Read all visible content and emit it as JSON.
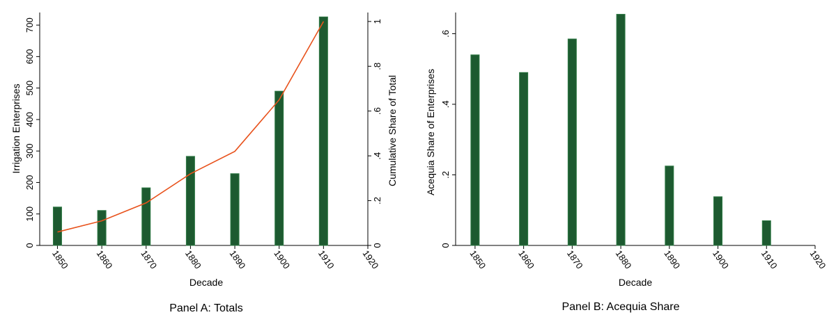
{
  "colors": {
    "bar": "#1d5a30",
    "bar_edge": "#2f7a45",
    "line": "#e8521c",
    "axis": "#000000"
  },
  "chart_data": [
    {
      "type": "bar",
      "title": "Panel A: Totals",
      "xlabel": "Decade",
      "ylabel": "Irrigation Enterprises",
      "y2label": "Cumulative Share of Total",
      "x": [
        1850,
        1860,
        1870,
        1880,
        1890,
        1900,
        1910
      ],
      "x_ticks": [
        "1850",
        "1860",
        "1870",
        "1880",
        "1890",
        "1900",
        "1910",
        "1920"
      ],
      "xlim": [
        1846,
        1920
      ],
      "y_ticks": [
        "0",
        "100",
        "200",
        "300",
        "400",
        "500",
        "600",
        "700"
      ],
      "ylim": [
        0,
        740
      ],
      "y2_ticks": [
        "0",
        ".2",
        ".4",
        ".6",
        ".8",
        "1"
      ],
      "y2lim": [
        0,
        1.04
      ],
      "series": [
        {
          "name": "",
          "kind": "bar",
          "axis": "left",
          "values": [
            122,
            111,
            183,
            283,
            228,
            490,
            726
          ]
        },
        {
          "name": "",
          "kind": "line",
          "axis": "right",
          "values": [
            0.06,
            0.11,
            0.19,
            0.32,
            0.42,
            0.65,
            1.0
          ]
        }
      ],
      "grid": false,
      "legend": "none"
    },
    {
      "type": "bar",
      "title": "Panel B: Acequia Share",
      "xlabel": "Decade",
      "ylabel": "Acequia Share of Enterprises",
      "x": [
        1850,
        1860,
        1870,
        1880,
        1890,
        1900,
        1910
      ],
      "x_ticks": [
        "1850",
        "1860",
        "1870",
        "1880",
        "1890",
        "1900",
        "1910",
        "1920"
      ],
      "xlim": [
        1846,
        1920
      ],
      "y_ticks": [
        "0",
        ".2",
        ".4",
        ".6"
      ],
      "ylim": [
        0,
        0.66
      ],
      "series": [
        {
          "name": "",
          "kind": "bar",
          "axis": "left",
          "values": [
            0.54,
            0.49,
            0.585,
            0.655,
            0.225,
            0.138,
            0.07
          ]
        }
      ],
      "grid": false,
      "legend": "none"
    }
  ]
}
